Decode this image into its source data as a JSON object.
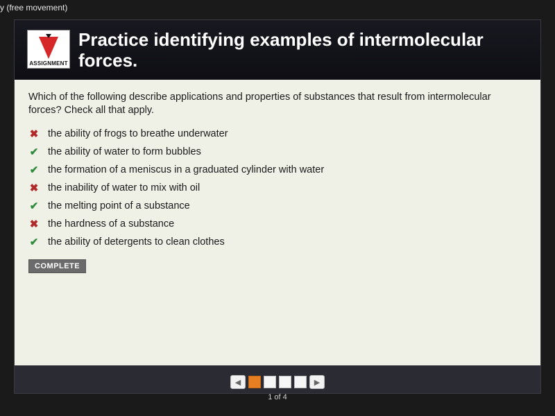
{
  "topbar": {
    "crumb": "y (free movement)"
  },
  "header": {
    "badge_label": "ASSIGNMENT",
    "title": "Practice identifying examples of intermolecular forces."
  },
  "question": "Which of the following describe applications and properties of substances that result from intermolecular forces? Check all that apply.",
  "options": [
    {
      "mark": "wrong",
      "glyph": "✖",
      "text": "the ability of frogs to breathe underwater"
    },
    {
      "mark": "correct",
      "glyph": "✔",
      "text": "the ability of water to form bubbles"
    },
    {
      "mark": "correct",
      "glyph": "✔",
      "text": "the formation of a meniscus in a graduated cylinder with water"
    },
    {
      "mark": "wrong",
      "glyph": "✖",
      "text": "the inability of water to mix with oil"
    },
    {
      "mark": "correct",
      "glyph": "✔",
      "text": "the melting point of a substance"
    },
    {
      "mark": "wrong",
      "glyph": "✖",
      "text": "the hardness of a substance"
    },
    {
      "mark": "correct",
      "glyph": "✔",
      "text": "the ability of detergents to clean clothes"
    }
  ],
  "complete_label": "COMPLETE",
  "pager": {
    "prev": "◀",
    "next": "▶",
    "total_pages": 4,
    "active_index": 0,
    "counter": "1 of 4"
  },
  "colors": {
    "page_bg": "#1a1a1a",
    "panel_bg": "#eff0e6",
    "header_bg": "#0e0e14",
    "correct": "#2e8b3d",
    "wrong": "#b02a2a",
    "pager_active": "#e67e22"
  }
}
